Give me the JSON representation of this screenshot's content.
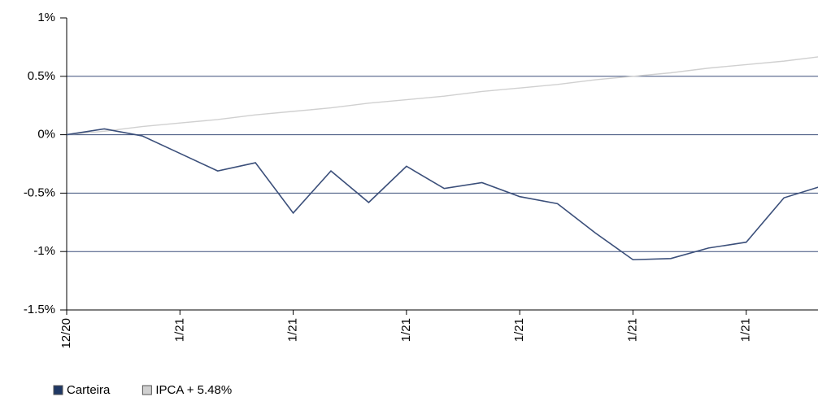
{
  "chart_data": {
    "type": "line",
    "categories": [
      "12/20",
      null,
      null,
      "1/21",
      null,
      null,
      "1/21",
      null,
      null,
      "1/21",
      null,
      null,
      "1/21",
      null,
      null,
      "1/21",
      null,
      null,
      "1/21",
      null,
      null
    ],
    "series": [
      {
        "name": "Carteira",
        "color": "#3b4f7a",
        "values": [
          0,
          0.05,
          -0.01,
          -0.16,
          -0.31,
          -0.24,
          -0.67,
          -0.31,
          -0.58,
          -0.27,
          -0.46,
          -0.41,
          -0.53,
          -0.59,
          -0.84,
          -1.07,
          -1.06,
          -0.97,
          -0.92,
          -0.54,
          -0.44
        ]
      },
      {
        "name": "IPCA + 5.48%",
        "color": "#d0d0d0",
        "values": [
          0,
          0.03,
          0.07,
          0.1,
          0.13,
          0.17,
          0.2,
          0.23,
          0.27,
          0.3,
          0.33,
          0.37,
          0.4,
          0.43,
          0.47,
          0.5,
          0.53,
          0.57,
          0.6,
          0.63,
          0.67
        ]
      }
    ],
    "ylim": [
      -1.5,
      1
    ],
    "yticks": [
      {
        "value": -1.5,
        "label": "-1.5%"
      },
      {
        "value": -1,
        "label": "-1%"
      },
      {
        "value": -0.5,
        "label": "-0.5%"
      },
      {
        "value": 0,
        "label": "0%"
      },
      {
        "value": 0.5,
        "label": "0.5%"
      },
      {
        "value": 1,
        "label": "1%"
      }
    ],
    "grid": true
  }
}
